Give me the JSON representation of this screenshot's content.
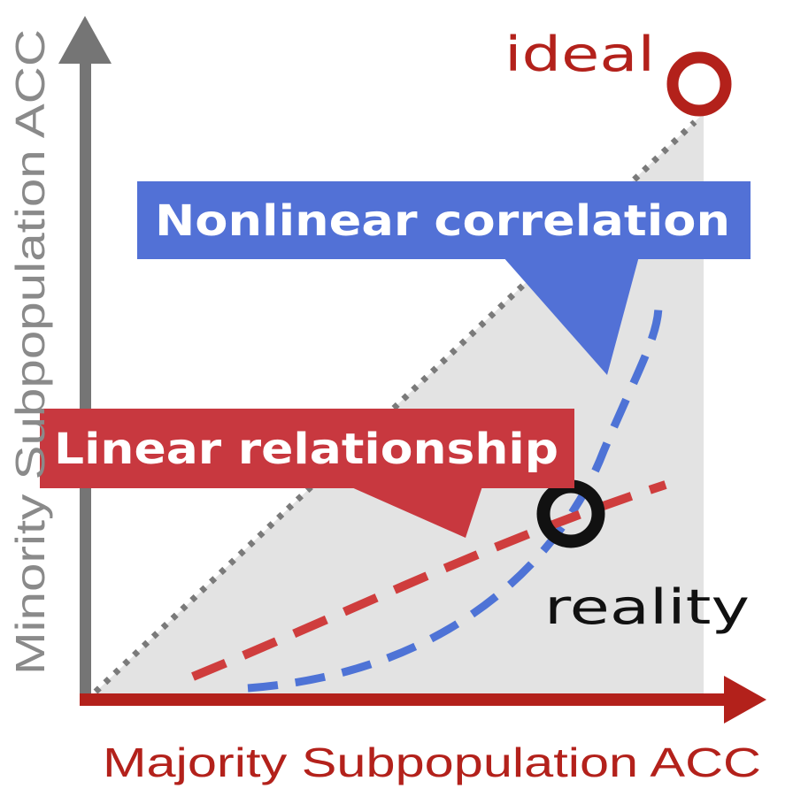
{
  "axes": {
    "x_label": "Majority Subpopulation ACC",
    "y_label": "Minority Subpopulation ACC"
  },
  "labels": {
    "ideal": "ideal",
    "reality": "reality",
    "nonlinear": "Nonlinear correlation",
    "linear": "Linear relationship"
  },
  "colors": {
    "x_axis": "#b3211b",
    "y_axis": "#757575",
    "region": "#e3e3e3",
    "diagonal": "#7a7a7a",
    "nonlinear_curve": "#4e73d6",
    "nonlinear_box": "#5271d6",
    "linear_curve": "#cf3d3d",
    "linear_box": "#c8383f",
    "ideal_marker": "#b3211b",
    "reality_marker": "#111111",
    "axis_text_x": "#b3211b",
    "axis_text_y": "#8a8a8a"
  }
}
